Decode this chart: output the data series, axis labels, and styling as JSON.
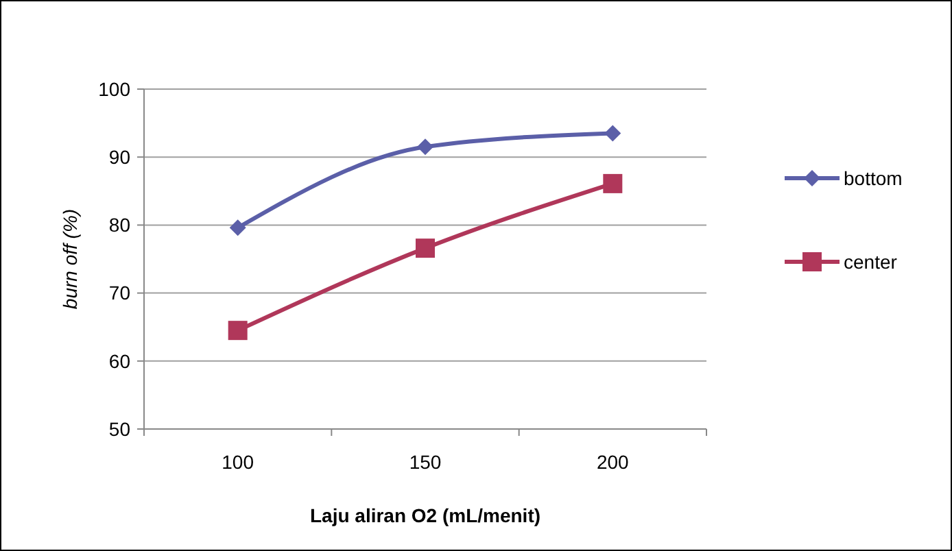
{
  "chart_data": {
    "type": "line",
    "xlabel": "Laju aliran O2 (mL/menit)",
    "ylabel": "burn off (%)",
    "categories": [
      "100",
      "150",
      "200"
    ],
    "ylim": [
      50,
      100
    ],
    "yticks": [
      50,
      60,
      70,
      80,
      90,
      100
    ],
    "grid": "y",
    "legend": "right",
    "line_style": "solid",
    "series": [
      {
        "name": "bottom",
        "color": "#5b5fa8",
        "marker": "diamond",
        "values": [
          79.6,
          91.5,
          93.5
        ]
      },
      {
        "name": "center",
        "color": "#b0375a",
        "marker": "square",
        "values": [
          64.5,
          76.6,
          86.1
        ]
      }
    ]
  }
}
